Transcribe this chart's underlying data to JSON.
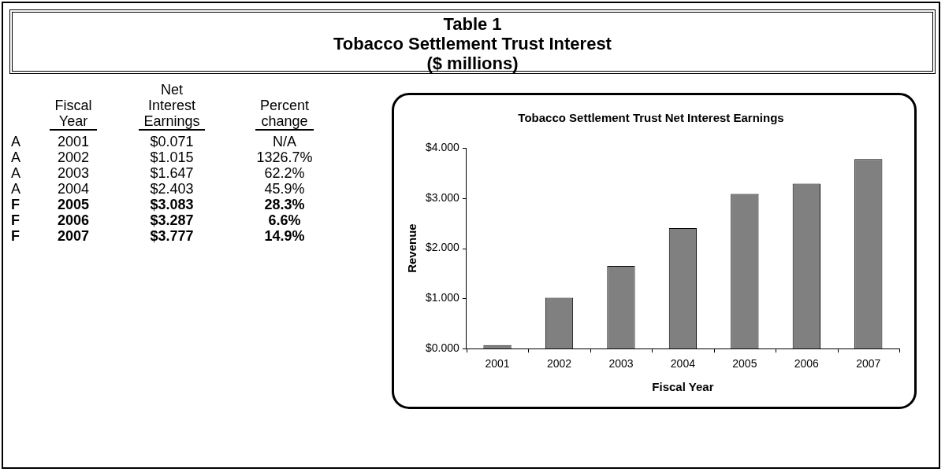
{
  "chart_data": {
    "type": "bar",
    "title": "Tobacco Settlement Trust Net Interest Earnings",
    "categories": [
      "2001",
      "2002",
      "2003",
      "2004",
      "2005",
      "2006",
      "2007"
    ],
    "values": [
      0.071,
      1.015,
      1.647,
      2.403,
      3.083,
      3.287,
      3.777
    ],
    "color": "#808080",
    "xlabel": "Fiscal Year",
    "ylabel": "Revenue",
    "ylim": [
      0,
      4
    ],
    "yticks": [
      {
        "value": 0,
        "label": "$0.000"
      },
      {
        "value": 1,
        "label": "$1.000"
      },
      {
        "value": 2,
        "label": "$2.000"
      },
      {
        "value": 3,
        "label": "$3.000"
      },
      {
        "value": 4,
        "label": "$4.000"
      }
    ],
    "grid": false,
    "legend": false,
    "annotations": [
      "Table 1",
      "Tobacco Settlement Trust Interest",
      "($ millions)",
      "Fiscal Year",
      "Net Interest Earnings",
      "Percent change",
      "A",
      "A",
      "A",
      "A",
      "F",
      "F",
      "F",
      "$0.071",
      "$1.015",
      "$1.647",
      "$2.403",
      "$3.083",
      "$3.287",
      "$3.777",
      "N/A",
      "1326.7%",
      "62.2%",
      "45.9%",
      "28.3%",
      "6.6%",
      "14.9%"
    ]
  }
}
